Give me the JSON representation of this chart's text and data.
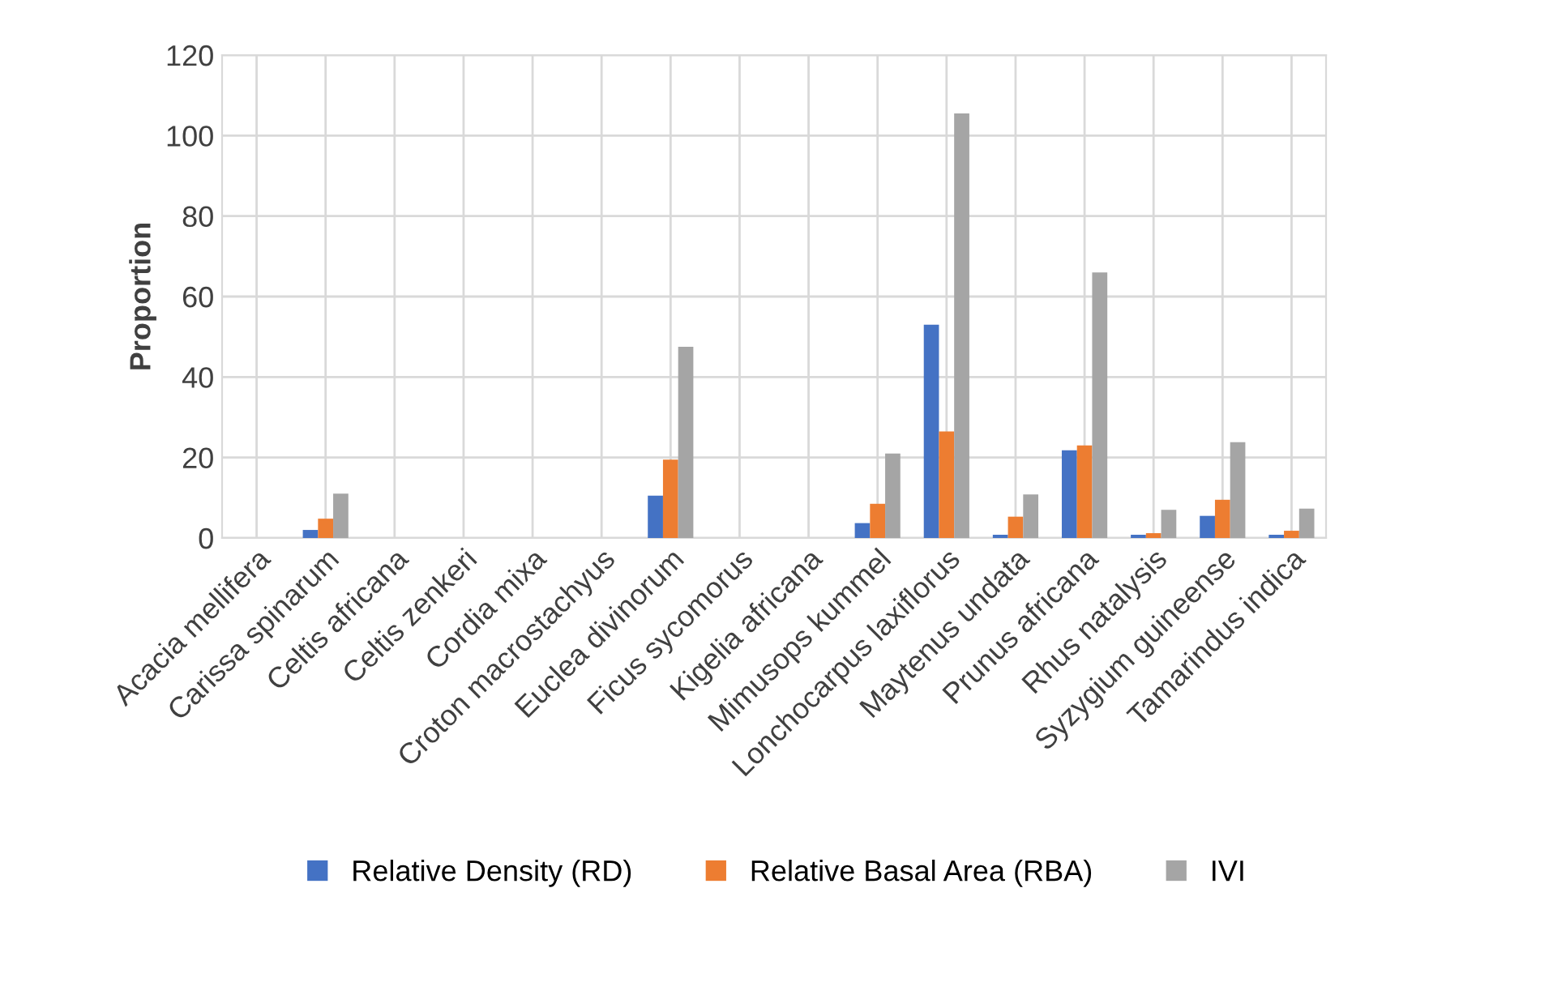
{
  "chart_data": {
    "type": "bar",
    "ylabel": "Proportion",
    "categories": [
      "Acacia mellifera",
      "Carissa spinarum",
      "Celtis africana",
      "Celtis zenkeri",
      "Cordia mixa",
      "Croton macrostachyus",
      "Euclea divinorum",
      "Ficus sycomorus",
      "Kigelia africana",
      "Mimusops kummel",
      "Lonchocarpus laxiflorus",
      "Maytenus undata",
      "Prunus africana",
      "Rhus natalysis",
      "Syzygium guineense",
      "Tamarindus indica"
    ],
    "series": [
      {
        "name": "Relative Density (RD)",
        "color": "#4472c4",
        "values": [
          0,
          2,
          0,
          0,
          0,
          0,
          10.5,
          0,
          0,
          3.7,
          53,
          0.8,
          21.8,
          0.8,
          5.5,
          0.8
        ]
      },
      {
        "name": "Relative Basal Area (RBA)",
        "color": "#ed7d31",
        "values": [
          0,
          4.8,
          0,
          0,
          0,
          0,
          19.5,
          0,
          0,
          8.5,
          26.5,
          5.3,
          23,
          1.2,
          9.5,
          1.8
        ]
      },
      {
        "name": "IVI",
        "color": "#a5a5a5",
        "values": [
          0,
          11,
          0,
          0,
          0,
          0,
          47.5,
          0,
          0,
          21,
          105.5,
          10.8,
          66,
          7,
          23.8,
          7.3
        ]
      }
    ],
    "ylim": [
      0,
      120
    ],
    "yticks": [
      0,
      20,
      40,
      60,
      80,
      100,
      120
    ],
    "grid": true,
    "legend": "bottom"
  }
}
